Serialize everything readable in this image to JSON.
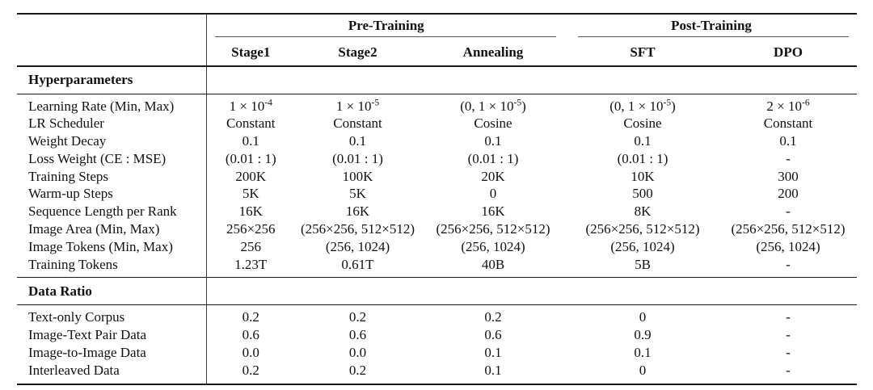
{
  "meta": {
    "background_color": "#ffffff",
    "text_color": "#111111",
    "heavy_rule_color": "#1a1a1a",
    "cmidrule_color": "#5a5a5a",
    "vertical_divider_color": "#3a3a3a"
  },
  "table": {
    "group_headers": [
      {
        "label": "Pre-Training",
        "span": 3
      },
      {
        "label": "Post-Training",
        "span": 2
      }
    ],
    "column_headers": [
      "Stage1",
      "Stage2",
      "Annealing",
      "SFT",
      "DPO"
    ],
    "sections": [
      {
        "title": "Hyperparameters",
        "rows": [
          {
            "label": "Learning Rate (Min, Max)",
            "values": [
              "1 × 10^{-4}",
              "1 × 10^{-5}",
              "(0, 1 × 10^{-5})",
              "(0, 1 × 10^{-5})",
              "2 × 10^{-6}"
            ]
          },
          {
            "label": "LR Scheduler",
            "values": [
              "Constant",
              "Constant",
              "Cosine",
              "Cosine",
              "Constant"
            ]
          },
          {
            "label": "Weight Decay",
            "values": [
              "0.1",
              "0.1",
              "0.1",
              "0.1",
              "0.1"
            ]
          },
          {
            "label": "Loss Weight (CE : MSE)",
            "values": [
              "(0.01 : 1)",
              "(0.01 : 1)",
              "(0.01 : 1)",
              "(0.01 : 1)",
              "-"
            ]
          },
          {
            "label": "Training Steps",
            "values": [
              "200K",
              "100K",
              "20K",
              "10K",
              "300"
            ]
          },
          {
            "label": "Warm-up Steps",
            "values": [
              "5K",
              "5K",
              "0",
              "500",
              "200"
            ]
          },
          {
            "label": "Sequence Length per Rank",
            "values": [
              "16K",
              "16K",
              "16K",
              "8K",
              "-"
            ]
          },
          {
            "label": "Image Area (Min, Max)",
            "values": [
              "256×256",
              "(256×256, 512×512)",
              "(256×256, 512×512)",
              "(256×256, 512×512)",
              "(256×256, 512×512)"
            ]
          },
          {
            "label": "Image Tokens (Min, Max)",
            "values": [
              "256",
              "(256, 1024)",
              "(256, 1024)",
              "(256, 1024)",
              "(256, 1024)"
            ]
          },
          {
            "label": "Training Tokens",
            "values": [
              "1.23T",
              "0.61T",
              "40B",
              "5B",
              "-"
            ]
          }
        ]
      },
      {
        "title": "Data Ratio",
        "rows": [
          {
            "label": "Text-only Corpus",
            "values": [
              "0.2",
              "0.2",
              "0.2",
              "0",
              "-"
            ]
          },
          {
            "label": "Image-Text Pair Data",
            "values": [
              "0.6",
              "0.6",
              "0.6",
              "0.9",
              "-"
            ]
          },
          {
            "label": "Image-to-Image Data",
            "values": [
              "0.0",
              "0.0",
              "0.1",
              "0.1",
              "-"
            ]
          },
          {
            "label": "Interleaved Data",
            "values": [
              "0.2",
              "0.2",
              "0.1",
              "0",
              "-"
            ]
          }
        ]
      }
    ]
  }
}
